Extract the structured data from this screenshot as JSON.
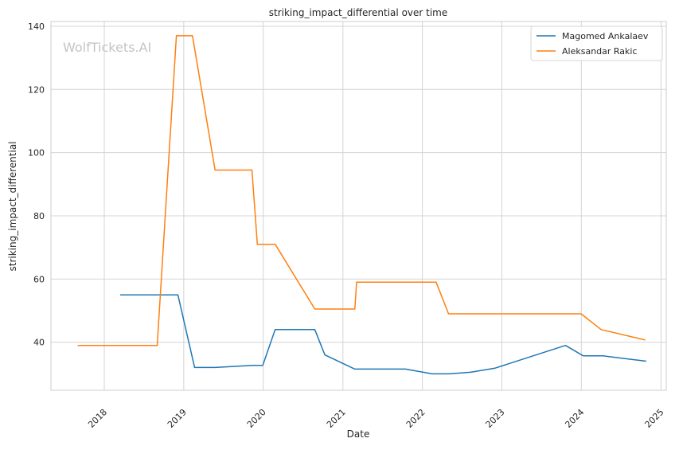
{
  "watermark": "WolfTickets.AI",
  "chart_data": {
    "type": "line",
    "title": "striking_impact_differential over time",
    "xlabel": "Date",
    "ylabel": "striking_impact_differential",
    "x_ticks": [
      "2018",
      "2019",
      "2020",
      "2021",
      "2022",
      "2023",
      "2024",
      "2025"
    ],
    "y_ticks": [
      40,
      60,
      80,
      100,
      120,
      140
    ],
    "xlim": [
      "2017-05-01",
      "2025-01-25"
    ],
    "ylim": [
      24.8,
      141.5
    ],
    "grid": true,
    "legend_position": "top-right",
    "series": [
      {
        "name": "Magomed Ankalaev",
        "color": "#1f77b4",
        "points": [
          [
            "2018-03-15",
            55.0
          ],
          [
            "2018-12-05",
            55.0
          ],
          [
            "2019-02-20",
            32.0
          ],
          [
            "2019-05-25",
            32.0
          ],
          [
            "2019-11-15",
            32.7
          ],
          [
            "2019-12-30",
            32.7
          ],
          [
            "2020-02-25",
            44.0
          ],
          [
            "2020-08-25",
            44.0
          ],
          [
            "2020-10-10",
            36.0
          ],
          [
            "2021-02-25",
            31.5
          ],
          [
            "2021-10-15",
            31.5
          ],
          [
            "2022-02-15",
            30.0
          ],
          [
            "2022-05-01",
            30.0
          ],
          [
            "2022-08-10",
            30.5
          ],
          [
            "2022-12-01",
            31.8
          ],
          [
            "2023-10-20",
            39.0
          ],
          [
            "2024-01-10",
            35.7
          ],
          [
            "2024-04-10",
            35.7
          ],
          [
            "2024-10-25",
            34.0
          ]
        ]
      },
      {
        "name": "Aleksandar Rakic",
        "color": "#ff7f0e",
        "points": [
          [
            "2017-09-01",
            39.0
          ],
          [
            "2018-09-01",
            39.0
          ],
          [
            "2018-11-28",
            137.0
          ],
          [
            "2019-02-10",
            137.0
          ],
          [
            "2019-05-25",
            94.5
          ],
          [
            "2019-11-10",
            94.5
          ],
          [
            "2019-12-05",
            71.0
          ],
          [
            "2020-02-25",
            71.0
          ],
          [
            "2020-08-25",
            50.5
          ],
          [
            "2021-02-25",
            50.5
          ],
          [
            "2021-03-05",
            59.0
          ],
          [
            "2022-03-05",
            59.0
          ],
          [
            "2022-05-01",
            49.0
          ],
          [
            "2023-12-31",
            49.0
          ],
          [
            "2024-04-01",
            44.0
          ],
          [
            "2024-10-20",
            40.7
          ]
        ]
      }
    ]
  }
}
